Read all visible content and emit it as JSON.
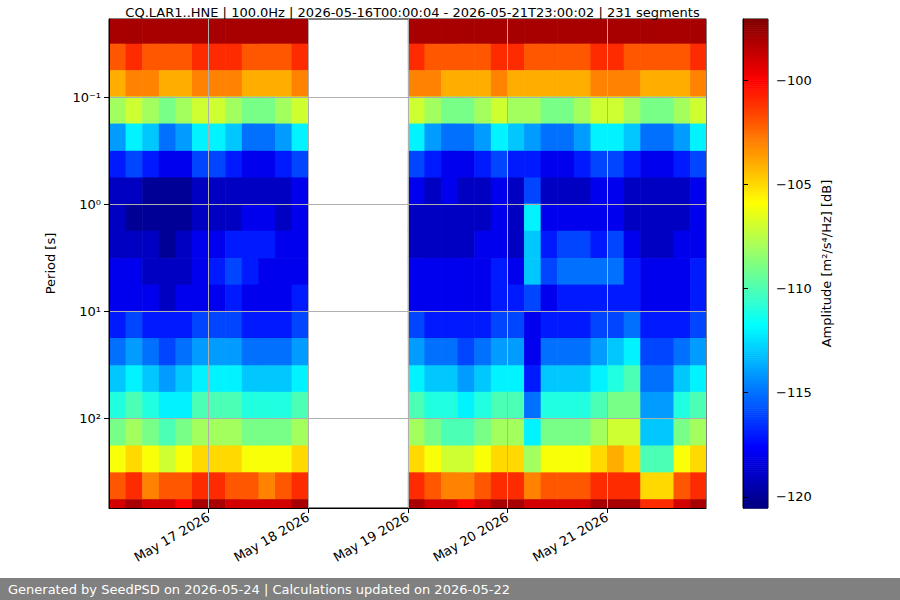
{
  "chart_data": {
    "type": "heatmap",
    "title": "CQ.LAR1..HNE | 100.0Hz | 2026-05-16T00:00:04 - 2026-05-21T23:00:02 | 231 segments",
    "y_label": "Period [s]",
    "footer": "Generated by SeedPSD on 2026-05-24 | Calculations updated on 2026-05-22",
    "log": "y",
    "grid": true,
    "x": [
      "2026-05-16T00:00",
      "2026-05-16T04:00",
      "2026-05-16T08:00",
      "2026-05-16T12:00",
      "2026-05-16T16:00",
      "2026-05-16T20:00",
      "2026-05-17T00:00",
      "2026-05-17T04:00",
      "2026-05-17T08:00",
      "2026-05-17T12:00",
      "2026-05-17T16:00",
      "2026-05-17T20:00",
      "2026-05-18T00:00",
      "2026-05-18T04:00",
      "2026-05-18T08:00",
      "2026-05-18T12:00",
      "2026-05-18T16:00",
      "2026-05-18T20:00",
      "2026-05-19T00:00",
      "2026-05-19T04:00",
      "2026-05-19T08:00",
      "2026-05-19T12:00",
      "2026-05-19T16:00",
      "2026-05-19T20:00",
      "2026-05-20T00:00",
      "2026-05-20T04:00",
      "2026-05-20T08:00",
      "2026-05-20T12:00",
      "2026-05-20T16:00",
      "2026-05-20T20:00",
      "2026-05-21T00:00",
      "2026-05-21T04:00",
      "2026-05-21T08:00",
      "2026-05-21T12:00",
      "2026-05-21T16:00",
      "2026-05-21T20:00"
    ],
    "y": [
      0.024,
      0.042,
      0.075,
      0.13,
      0.24,
      0.42,
      0.75,
      1.3,
      2.4,
      4.2,
      7.5,
      13,
      24,
      42,
      75,
      133,
      237,
      422,
      750
    ],
    "cells": [
      [
        -98,
        -102,
        -104,
        -108,
        -114,
        -117,
        -119,
        -119,
        -119,
        -118,
        -118,
        -117,
        -115,
        -113,
        -111,
        -109,
        -106,
        -102,
        -99
      ],
      [
        -98,
        -101,
        -103,
        -107,
        -112,
        -116,
        -119,
        -120,
        -119,
        -118,
        -118,
        -116,
        -114,
        -112,
        -110,
        -108,
        -105,
        -101,
        -98
      ],
      [
        -98,
        -102,
        -103,
        -108,
        -113,
        -117,
        -120,
        -120,
        -119,
        -119,
        -118,
        -117,
        -115,
        -113,
        -111,
        -109,
        -106,
        -103,
        -99
      ],
      [
        -98,
        -102,
        -104,
        -109,
        -115,
        -118,
        -120,
        -120,
        -120,
        -119,
        -119,
        -117,
        -116,
        -114,
        -112,
        -110,
        -107,
        -102,
        -99
      ],
      [
        -98,
        -102,
        -104,
        -108,
        -114,
        -118,
        -120,
        -120,
        -119,
        -119,
        -118,
        -117,
        -115,
        -113,
        -112,
        -109,
        -106,
        -102,
        -100
      ],
      [
        -98,
        -101,
        -103,
        -107,
        -112,
        -116,
        -119,
        -119,
        -118,
        -118,
        -118,
        -116,
        -114,
        -112,
        -110,
        -108,
        -105,
        -101,
        -98
      ],
      [
        -98,
        -101,
        -103,
        -107,
        -112,
        -116,
        -119,
        -119,
        -118,
        -117,
        -118,
        -116,
        -114,
        -112,
        -110,
        -108,
        -105,
        -101,
        -98
      ],
      [
        -98,
        -101,
        -103,
        -108,
        -113,
        -117,
        -119,
        -119,
        -117,
        -116,
        -117,
        -116,
        -114,
        -112,
        -110,
        -108,
        -105,
        -102,
        -99
      ],
      [
        -98,
        -102,
        -104,
        -109,
        -115,
        -118,
        -119,
        -118,
        -117,
        -117,
        -118,
        -117,
        -115,
        -113,
        -111,
        -109,
        -106,
        -102,
        -99
      ],
      [
        -98,
        -102,
        -104,
        -109,
        -115,
        -118,
        -119,
        -118,
        -117,
        -118,
        -118,
        -117,
        -115,
        -113,
        -111,
        -109,
        -106,
        -103,
        -99
      ],
      [
        -98,
        -102,
        -104,
        -108,
        -114,
        -117,
        -119,
        -119,
        -118,
        -118,
        -118,
        -117,
        -115,
        -113,
        -111,
        -109,
        -106,
        -102,
        -99
      ],
      [
        -98,
        -101,
        -103,
        -107,
        -112,
        -116,
        -118,
        -118,
        -118,
        -118,
        -117,
        -116,
        -114,
        -112,
        -110,
        -108,
        -105,
        -101,
        -98
      ],
      null,
      null,
      null,
      null,
      null,
      null,
      [
        -98,
        -101,
        -103,
        -107,
        -112,
        -116,
        -118,
        -119,
        -119,
        -118,
        -118,
        -116,
        -114,
        -112,
        -110,
        -108,
        -105,
        -101,
        -98
      ],
      [
        -98,
        -102,
        -103,
        -108,
        -114,
        -117,
        -119,
        -119,
        -119,
        -118,
        -118,
        -117,
        -115,
        -113,
        -111,
        -109,
        -106,
        -102,
        -99
      ],
      [
        -98,
        -102,
        -104,
        -109,
        -115,
        -118,
        -118,
        -119,
        -119,
        -118,
        -118,
        -117,
        -115,
        -113,
        -111,
        -110,
        -107,
        -103,
        -99
      ],
      [
        -98,
        -102,
        -104,
        -109,
        -115,
        -118,
        -119,
        -119,
        -119,
        -118,
        -118,
        -117,
        -116,
        -114,
        -112,
        -110,
        -107,
        -103,
        -100
      ],
      [
        -98,
        -102,
        -104,
        -108,
        -114,
        -117,
        -119,
        -119,
        -118,
        -118,
        -118,
        -117,
        -115,
        -113,
        -111,
        -109,
        -106,
        -102,
        -99
      ],
      [
        -98,
        -101,
        -103,
        -107,
        -112,
        -116,
        -118,
        -118,
        -118,
        -117,
        -117,
        -116,
        -114,
        -112,
        -110,
        -108,
        -105,
        -101,
        -98
      ],
      [
        -98,
        -101,
        -104,
        -108,
        -113,
        -117,
        -119,
        -119,
        -119,
        -118,
        -117,
        -116,
        -114,
        -112,
        -110,
        -108,
        -105,
        -101,
        -98
      ],
      [
        -98,
        -102,
        -104,
        -108,
        -114,
        -117,
        -116,
        -112,
        -113,
        -113,
        -116,
        -118,
        -118,
        -117,
        -115,
        -112,
        -108,
        -103,
        -99
      ],
      [
        -98,
        -102,
        -104,
        -109,
        -115,
        -118,
        -119,
        -118,
        -117,
        -116,
        -118,
        -117,
        -115,
        -113,
        -111,
        -109,
        -106,
        -102,
        -99
      ],
      [
        -98,
        -102,
        -104,
        -109,
        -115,
        -118,
        -119,
        -118,
        -116,
        -115,
        -117,
        -117,
        -115,
        -113,
        -111,
        -109,
        -106,
        -102,
        -99
      ],
      [
        -98,
        -102,
        -104,
        -108,
        -114,
        -117,
        -119,
        -118,
        -116,
        -115,
        -117,
        -117,
        -115,
        -113,
        -111,
        -109,
        -106,
        -102,
        -99
      ],
      [
        -98,
        -101,
        -103,
        -107,
        -112,
        -116,
        -118,
        -118,
        -117,
        -115,
        -117,
        -116,
        -114,
        -112,
        -110,
        -108,
        -105,
        -101,
        -98
      ],
      [
        -98,
        -101,
        -103,
        -107,
        -112,
        -116,
        -118,
        -118,
        -116,
        -115,
        -117,
        -116,
        -113,
        -111,
        -109,
        -107,
        -104,
        -101,
        -98
      ],
      [
        -98,
        -102,
        -103,
        -108,
        -113,
        -117,
        -119,
        -119,
        -118,
        -117,
        -117,
        -115,
        -112,
        -110,
        -109,
        -107,
        -105,
        -101,
        -98
      ],
      [
        -98,
        -102,
        -104,
        -109,
        -115,
        -118,
        -119,
        -119,
        -119,
        -118,
        -118,
        -117,
        -116,
        -115,
        -114,
        -113,
        -110,
        -105,
        -101
      ],
      [
        -98,
        -102,
        -104,
        -109,
        -115,
        -118,
        -119,
        -119,
        -119,
        -118,
        -118,
        -117,
        -116,
        -115,
        -114,
        -113,
        -110,
        -105,
        -101
      ],
      [
        -98,
        -102,
        -104,
        -108,
        -114,
        -117,
        -119,
        -119,
        -118,
        -118,
        -118,
        -117,
        -115,
        -113,
        -111,
        -109,
        -106,
        -102,
        -99
      ],
      [
        -98,
        -101,
        -103,
        -107,
        -112,
        -116,
        -118,
        -118,
        -118,
        -117,
        -117,
        -116,
        -114,
        -112,
        -110,
        -108,
        -105,
        -101,
        -98
      ]
    ],
    "xlim": [
      "2026-05-16T00:00",
      "2026-05-21T23:50"
    ],
    "xticks": [
      {
        "value": "2026-05-17T00:00",
        "label": "May 17 2026"
      },
      {
        "value": "2026-05-18T00:00",
        "label": "May 18 2026"
      },
      {
        "value": "2026-05-19T00:00",
        "label": "May 19 2026"
      },
      {
        "value": "2026-05-20T00:00",
        "label": "May 20 2026"
      },
      {
        "value": "2026-05-21T00:00",
        "label": "May 21 2026"
      }
    ],
    "ylim": [
      0.0187,
      680
    ],
    "yticks": [
      {
        "value": 0.1,
        "label": "10⁻¹"
      },
      {
        "value": 1,
        "label": "10⁰"
      },
      {
        "value": 10,
        "label": "10¹"
      },
      {
        "value": 100,
        "label": "10²"
      }
    ],
    "colorbar": {
      "label": "Amplitude [m²/s⁴/Hz] [dB]",
      "range": [
        -120.53,
        -97.07
      ],
      "ticks": [
        {
          "value": -120,
          "label": "−120"
        },
        {
          "value": -115,
          "label": "−115"
        },
        {
          "value": -110,
          "label": "−110"
        },
        {
          "value": -105,
          "label": "−105"
        },
        {
          "value": -100,
          "label": "−100"
        }
      ]
    }
  }
}
